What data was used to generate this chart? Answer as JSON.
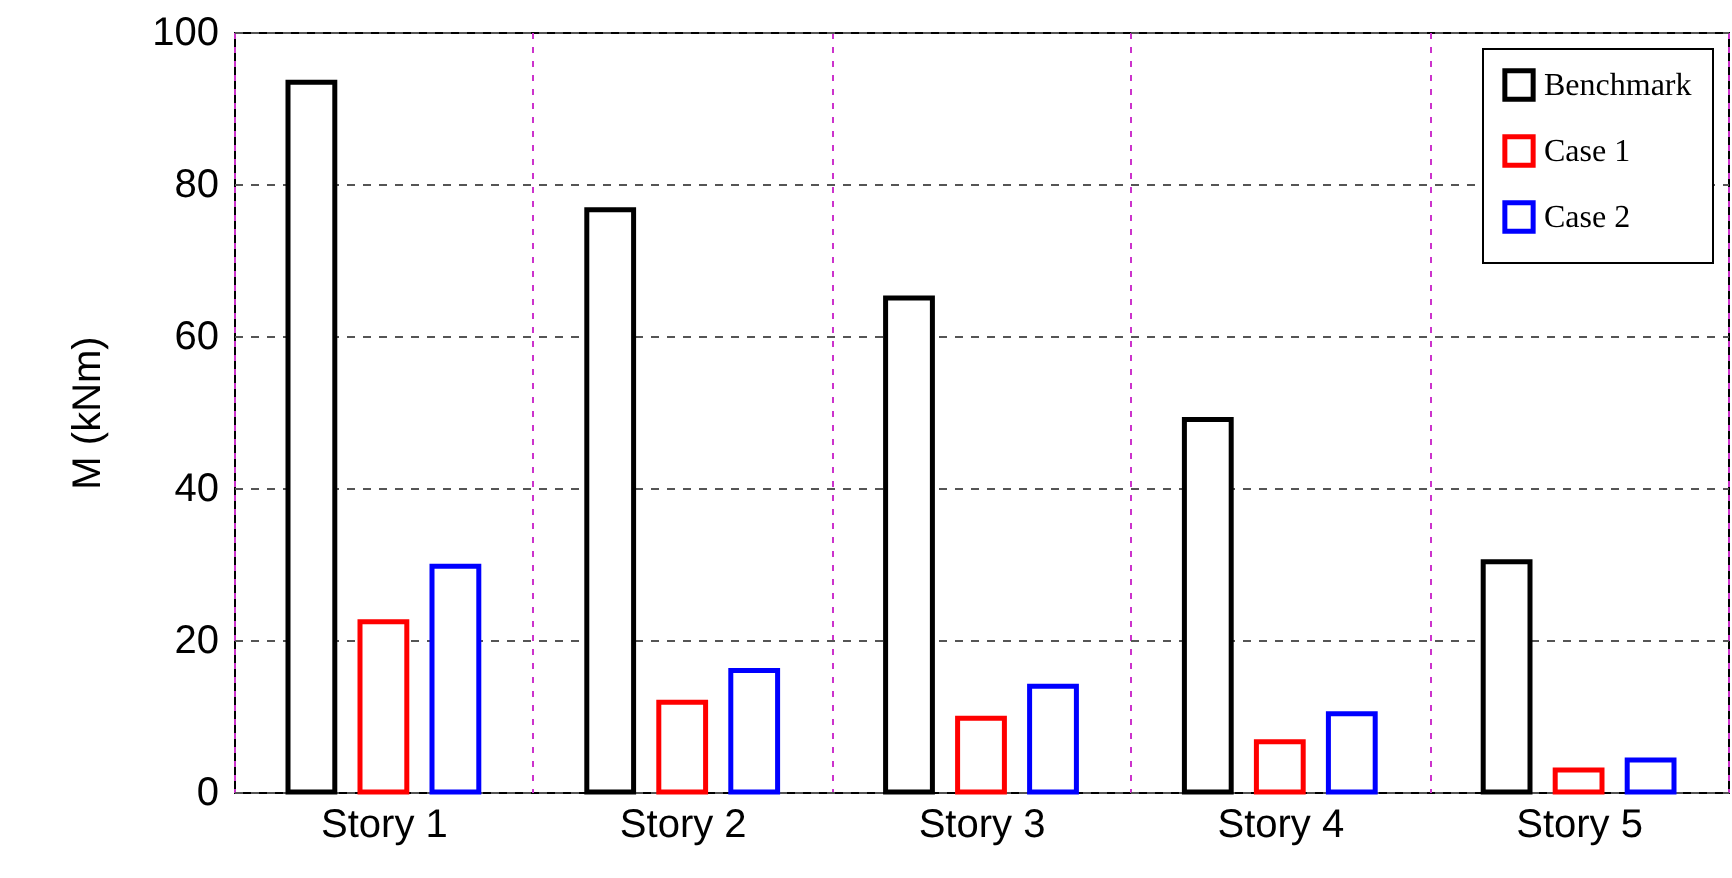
{
  "chart_data": {
    "type": "bar",
    "ylabel": "M (kNm)",
    "categories": [
      "Story 1",
      "Story 2",
      "Story 3",
      "Story 4",
      "Story 5"
    ],
    "series": [
      {
        "name": "Benchmark",
        "color": "#000000",
        "values": [
          93.4,
          76.6,
          65,
          49,
          30.3
        ]
      },
      {
        "name": "Case 1",
        "color": "#ff0000",
        "values": [
          22.4,
          11.8,
          9.7,
          6.6,
          2.9
        ]
      },
      {
        "name": "Case 2",
        "color": "#0000ff",
        "values": [
          29.7,
          16,
          13.9,
          10.3,
          4.2
        ]
      }
    ],
    "ylim": [
      0,
      100
    ],
    "yticks": [
      0,
      20,
      40,
      60,
      80,
      100
    ],
    "grid": true,
    "legend": "top right"
  }
}
